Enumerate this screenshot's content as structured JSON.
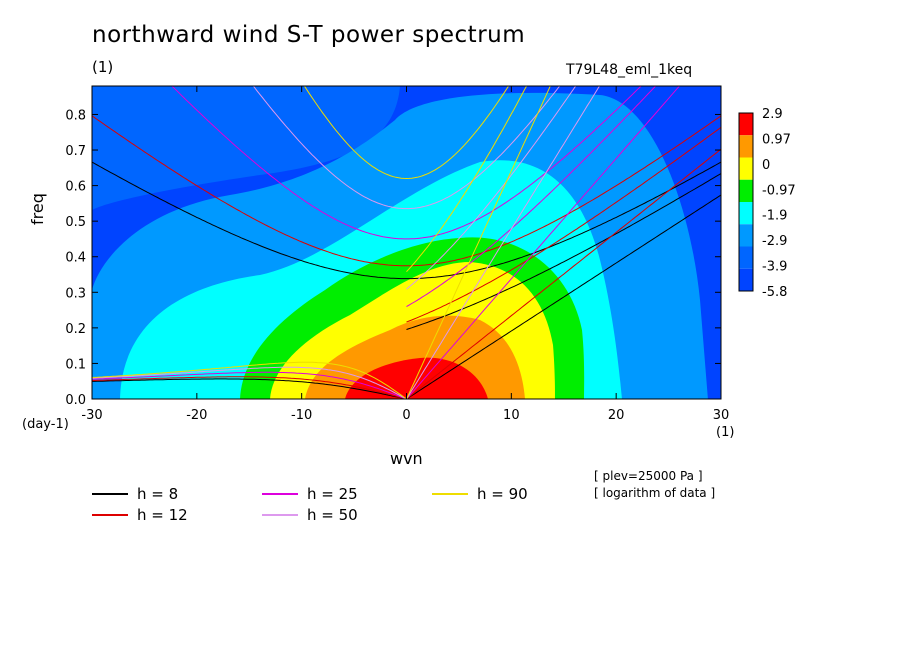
{
  "chart_data": {
    "type": "contour",
    "title": "northward wind S-T power spectrum",
    "subtitle_left": "(1)",
    "subtitle_right": "T79L48_eml_1keq",
    "xlabel": "wvn",
    "xunit": "(1)",
    "ylabel": "freq",
    "yunit": "(day-1)",
    "xlim": [
      -30,
      30
    ],
    "ylim": [
      0.0,
      0.88
    ],
    "x_ticks": [
      "-30",
      "-20",
      "-10",
      "0",
      "10",
      "20",
      "30"
    ],
    "y_ticks": [
      "0.0",
      "0.1",
      "0.2",
      "0.3",
      "0.4",
      "0.5",
      "0.6",
      "0.7",
      "0.8"
    ],
    "contour_levels": [
      "2.9",
      "0.97",
      "0",
      "-0.97",
      "-1.9",
      "-2.9",
      "-3.9",
      "-5.8"
    ],
    "contour_colors": [
      "#ff0000",
      "#ff9900",
      "#ffff00",
      "#00ee00",
      "#00ffff",
      "#0099ff",
      "#0066ff",
      "#0044ff"
    ],
    "dispersion_curves": [
      {
        "label": "h =  8",
        "h": 8,
        "color": "#000000"
      },
      {
        "label": "h = 12",
        "h": 12,
        "color": "#dd0000"
      },
      {
        "label": "h = 25",
        "h": 25,
        "color": "#dd00dd"
      },
      {
        "label": "h = 50",
        "h": 50,
        "color": "#dd99ee"
      },
      {
        "label": "h = 90",
        "h": 90,
        "color": "#eedd00"
      }
    ],
    "notes": [
      "[ plev=25000 Pa ]",
      "[ logarithm of data ]"
    ]
  }
}
